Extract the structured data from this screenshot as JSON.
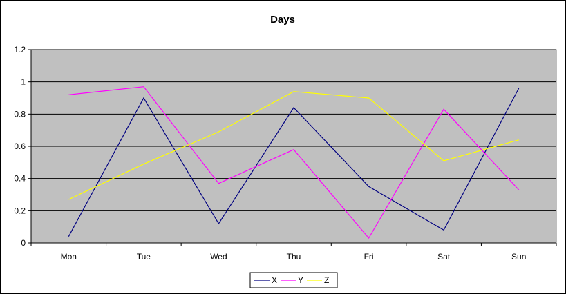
{
  "chart_data": {
    "type": "line",
    "title": "Days",
    "xlabel": "",
    "ylabel": "",
    "categories": [
      "Mon",
      "Tue",
      "Wed",
      "Thu",
      "Fri",
      "Sat",
      "Sun"
    ],
    "ylim": [
      0,
      1.2
    ],
    "yticks": [
      "0",
      "0.2",
      "0.4",
      "0.6",
      "0.8",
      "1",
      "1.2"
    ],
    "grid": true,
    "legend_position": "bottom",
    "plot_background": "#c0c0c0",
    "series": [
      {
        "name": "X",
        "color": "#000080",
        "values": [
          0.04,
          0.9,
          0.12,
          0.84,
          0.35,
          0.08,
          0.96
        ]
      },
      {
        "name": "Y",
        "color": "#ff00ff",
        "values": [
          0.92,
          0.97,
          0.37,
          0.58,
          0.03,
          0.83,
          0.33
        ]
      },
      {
        "name": "Z",
        "color": "#ffff00",
        "values": [
          0.27,
          0.49,
          0.69,
          0.94,
          0.9,
          0.51,
          0.64
        ]
      }
    ]
  }
}
